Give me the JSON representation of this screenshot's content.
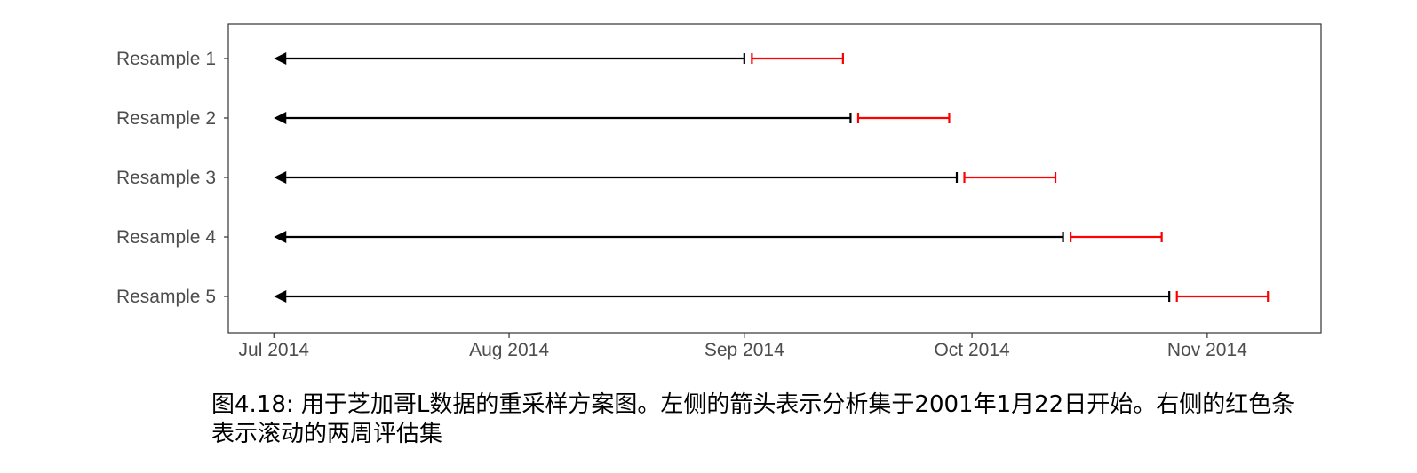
{
  "chart_data": {
    "type": "interval",
    "title": "",
    "xlabel": "",
    "ylabel": "",
    "x_axis": {
      "type": "date",
      "range": [
        "2014-06-25",
        "2014-11-16"
      ],
      "ticks": [
        {
          "value": "2014-07-01",
          "label": "Jul 2014"
        },
        {
          "value": "2014-08-01",
          "label": "Aug 2014"
        },
        {
          "value": "2014-09-01",
          "label": "Sep 2014"
        },
        {
          "value": "2014-10-01",
          "label": "Oct 2014"
        },
        {
          "value": "2014-11-01",
          "label": "Nov 2014"
        }
      ]
    },
    "categories": [
      "Resample 1",
      "Resample 2",
      "Resample 3",
      "Resample 4",
      "Resample 5"
    ],
    "analysis_color": "#000000",
    "assessment_color": "#ff0000",
    "analysis": [
      {
        "start": "2014-07-01",
        "end": "2014-09-01"
      },
      {
        "start": "2014-07-01",
        "end": "2014-09-15"
      },
      {
        "start": "2014-07-01",
        "end": "2014-09-29"
      },
      {
        "start": "2014-07-01",
        "end": "2014-10-13"
      },
      {
        "start": "2014-07-01",
        "end": "2014-10-27"
      }
    ],
    "assessment": [
      {
        "start": "2014-09-02",
        "end": "2014-09-14"
      },
      {
        "start": "2014-09-16",
        "end": "2014-09-28"
      },
      {
        "start": "2014-09-30",
        "end": "2014-10-12"
      },
      {
        "start": "2014-10-14",
        "end": "2014-10-26"
      },
      {
        "start": "2014-10-28",
        "end": "2014-11-09"
      }
    ],
    "grid": false,
    "legend": "none"
  },
  "caption": "图4.18: 用于芝加哥L数据的重采样方案图。左侧的箭头表示分析集于2001年1月22日开始。右侧的红色条表示滚动的两周评估集"
}
